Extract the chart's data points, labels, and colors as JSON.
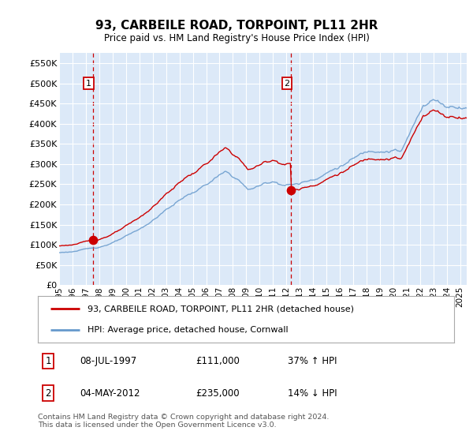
{
  "title": "93, CARBEILE ROAD, TORPOINT, PL11 2HR",
  "subtitle": "Price paid vs. HM Land Registry's House Price Index (HPI)",
  "ylabel_ticks": [
    "£0",
    "£50K",
    "£100K",
    "£150K",
    "£200K",
    "£250K",
    "£300K",
    "£350K",
    "£400K",
    "£450K",
    "£500K",
    "£550K"
  ],
  "ytick_values": [
    0,
    50000,
    100000,
    150000,
    200000,
    250000,
    300000,
    350000,
    400000,
    450000,
    500000,
    550000
  ],
  "ylim": [
    0,
    575000
  ],
  "xlim_start": 1995.0,
  "xlim_end": 2025.5,
  "purchase1_year": 1997.52,
  "purchase1_price": 111000,
  "purchase2_year": 2012.34,
  "purchase2_price": 235000,
  "legend_line1": "93, CARBEILE ROAD, TORPOINT, PL11 2HR (detached house)",
  "legend_line2": "HPI: Average price, detached house, Cornwall",
  "table_row1_num": "1",
  "table_row1_date": "08-JUL-1997",
  "table_row1_price": "£111,000",
  "table_row1_hpi": "37% ↑ HPI",
  "table_row2_num": "2",
  "table_row2_date": "04-MAY-2012",
  "table_row2_price": "£235,000",
  "table_row2_hpi": "14% ↓ HPI",
  "footer": "Contains HM Land Registry data © Crown copyright and database right 2024.\nThis data is licensed under the Open Government Licence v3.0.",
  "bg_color": "#dce9f8",
  "line_color_red": "#cc0000",
  "line_color_blue": "#6699cc",
  "dot_color_red": "#cc0000",
  "grid_color": "#ffffff",
  "dashed_color": "#cc0000",
  "xtick_years": [
    1995,
    1996,
    1997,
    1998,
    1999,
    2000,
    2001,
    2002,
    2003,
    2004,
    2005,
    2006,
    2007,
    2008,
    2009,
    2010,
    2011,
    2012,
    2013,
    2014,
    2015,
    2016,
    2017,
    2018,
    2019,
    2020,
    2021,
    2022,
    2023,
    2024,
    2025
  ]
}
